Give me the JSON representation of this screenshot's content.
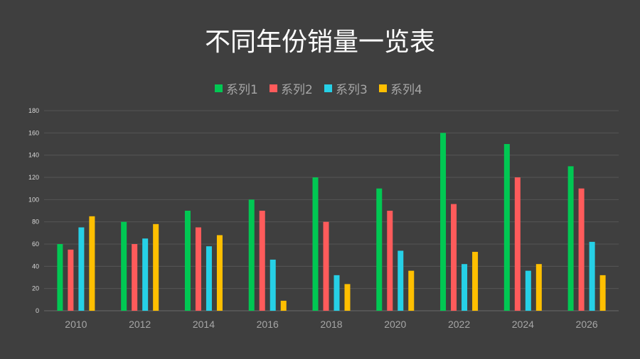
{
  "chart_data": {
    "type": "bar",
    "title": "不同年份销量一览表",
    "categories": [
      "2010",
      "2012",
      "2014",
      "2016",
      "2018",
      "2020",
      "2022",
      "2024",
      "2026"
    ],
    "series": [
      {
        "name": "系列1",
        "color": "#00c853",
        "values": [
          60,
          80,
          90,
          100,
          120,
          110,
          160,
          150,
          130
        ]
      },
      {
        "name": "系列2",
        "color": "#ff5b5b",
        "values": [
          55,
          60,
          75,
          90,
          80,
          90,
          96,
          120,
          110
        ]
      },
      {
        "name": "系列3",
        "color": "#26d0e6",
        "values": [
          75,
          65,
          58,
          46,
          32,
          54,
          42,
          36,
          62
        ]
      },
      {
        "name": "系列4",
        "color": "#ffbf00",
        "values": [
          85,
          78,
          68,
          9,
          24,
          36,
          53,
          42,
          32
        ]
      }
    ],
    "ylim": [
      0,
      180
    ],
    "yticks": [
      0,
      20,
      40,
      60,
      80,
      100,
      120,
      140,
      160,
      180
    ],
    "grid": true,
    "legend_position": "top"
  }
}
